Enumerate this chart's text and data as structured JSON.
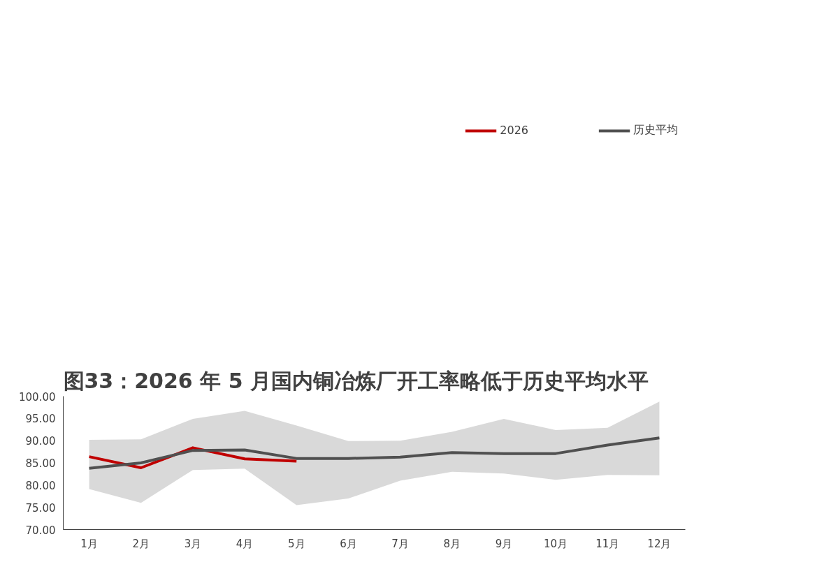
{
  "chart_data": {
    "type": "line",
    "title": "图33：2026 年 5 月国内铜冶炼厂开工率略低于历史平均水平",
    "categories": [
      "1月",
      "2月",
      "3月",
      "4月",
      "5月",
      "6月",
      "7月",
      "8月",
      "9月",
      "10月",
      "11月",
      "12月"
    ],
    "series": [
      {
        "name": "2026",
        "color": "#c00000",
        "values": [
          86.4,
          83.9,
          88.4,
          85.9,
          85.4,
          null,
          null,
          null,
          null,
          null,
          null,
          null
        ]
      },
      {
        "name": "历史平均",
        "color": "#505050",
        "values": [
          83.8,
          85.0,
          87.8,
          87.9,
          86.0,
          86.0,
          86.3,
          87.3,
          87.1,
          87.1,
          89.0,
          90.6
        ],
        "lower": [
          79.1,
          76.0,
          83.4,
          83.7,
          75.5,
          77.0,
          81.0,
          83.0,
          82.6,
          81.2,
          82.3,
          82.2
        ],
        "upper": [
          90.2,
          90.3,
          94.9,
          96.7,
          93.4,
          89.9,
          90.0,
          92.0,
          94.9,
          92.4,
          92.9,
          98.8
        ]
      }
    ],
    "ylim": [
      70,
      100
    ],
    "yticks": [
      {
        "value": 70,
        "label": "70.00"
      },
      {
        "value": 75,
        "label": "75.00"
      },
      {
        "value": 80,
        "label": "80.00"
      },
      {
        "value": 85,
        "label": "85.00"
      },
      {
        "value": 90,
        "label": "90.00"
      },
      {
        "value": 95,
        "label": "95.00"
      },
      {
        "value": 100,
        "label": "100.00"
      }
    ],
    "grid": false,
    "legend": "top",
    "line_style": "solid",
    "marker": "none"
  }
}
